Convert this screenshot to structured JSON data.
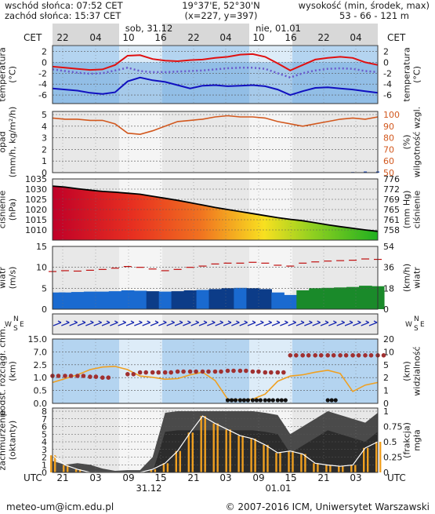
{
  "header": {
    "sunrise": "wschód słońca: 07:52 CET",
    "sunset": "zachód słońca: 15:37 CET",
    "coords": "19°37'E, 52°30'N",
    "grid": "(x=227,  y=397)",
    "altitude_label": "wysokość (min, środek, max)",
    "altitude_values": "53 - 66 - 121 m"
  },
  "timeline": {
    "tz_top": "CET",
    "tz_bottom": "UTC",
    "top_ticks": [
      "22",
      "04",
      "10",
      "16",
      "22",
      "04",
      "10",
      "16",
      "22",
      "04"
    ],
    "bottom_ticks": [
      "21",
      "03",
      "09",
      "15",
      "21",
      "03",
      "09",
      "15",
      "21",
      "03"
    ],
    "day_top_1": "sob, 31.12",
    "day_top_2": "nie, 01.01",
    "day_bottom_1": "31.12",
    "day_bottom_2": "01.01"
  },
  "footer": {
    "email": "meteo-um@icm.edu.pl",
    "copyright": "© 2007-2016 ICM, Uniwersytet Warszawski"
  },
  "colors": {
    "temp_max": "#e01010",
    "temp_min": "#1010c0",
    "temp_mid": "#6a5acd",
    "humidity": "#d2581e",
    "pressure": "#000000",
    "wind_gust": "#c01010",
    "wind_bar": "#1060c0",
    "visibility": "#f0a020",
    "cloud_dots": "#a03030",
    "fog_line": "#ffffff",
    "fog_bars": "#f0a020"
  },
  "chart_data": [
    {
      "type": "line",
      "name": "temperature",
      "ylabel_left": "temperatura\n(°C)",
      "ylabel_right": "temperatura\n(°C)",
      "ylim": [
        -7,
        2.5
      ],
      "yticks": [
        2,
        0,
        -2,
        -4,
        -6
      ],
      "series": [
        {
          "name": "max",
          "values": [
            -0.8,
            -1.0,
            -1.2,
            -1.4,
            -1.3,
            -0.5,
            1.2,
            1.3,
            0.6,
            0.3,
            0.2,
            0.4,
            0.5,
            0.8,
            1.0,
            1.4,
            1.5,
            1.0,
            -0.2,
            -1.5,
            -0.5,
            0.5,
            0.8,
            1.0,
            0.8,
            0.0,
            -0.5
          ]
        },
        {
          "name": "mid",
          "values": [
            -1.3,
            -1.6,
            -1.9,
            -2.1,
            -2.0,
            -1.5,
            -1.0,
            -1.6,
            -1.8,
            -1.8,
            -1.7,
            -1.6,
            -1.5,
            -1.3,
            -1.1,
            -1.0,
            -1.0,
            -1.2,
            -2.0,
            -2.8,
            -2.0,
            -1.5,
            -1.2,
            -1.1,
            -1.2,
            -1.6,
            -1.8
          ]
        },
        {
          "name": "min",
          "values": [
            -4.8,
            -5.0,
            -5.2,
            -5.6,
            -5.8,
            -5.5,
            -3.5,
            -2.8,
            -3.3,
            -3.6,
            -4.2,
            -4.8,
            -4.3,
            -4.2,
            -4.4,
            -4.3,
            -4.2,
            -4.4,
            -5.0,
            -6.0,
            -5.3,
            -4.7,
            -4.6,
            -4.8,
            -5.0,
            -5.3,
            -5.6
          ]
        }
      ]
    },
    {
      "type": "line",
      "name": "precipitation-humidity",
      "ylabel_left": "opad\n(mm/h, kg/m²/h)",
      "ylabel_right": "(%)\nwilgotność wzgl.",
      "ylim_left": [
        0,
        5
      ],
      "yticks_left": [
        0,
        1,
        2,
        3,
        4,
        5
      ],
      "ylim_right": [
        50,
        100
      ],
      "yticks_right": [
        50,
        60,
        70,
        80,
        90,
        100
      ],
      "series": [
        {
          "name": "humidity",
          "values": [
            97,
            96,
            96,
            95,
            95,
            92,
            84,
            83,
            86,
            90,
            94,
            95,
            96,
            98,
            99,
            98,
            98,
            97,
            94,
            92,
            90,
            92,
            94,
            96,
            97,
            96,
            98
          ]
        },
        {
          "name": "precipitation",
          "values": [
            0,
            0,
            0,
            0,
            0,
            0,
            0,
            0,
            0,
            0,
            0,
            0,
            0,
            0,
            0,
            0,
            0,
            0,
            0,
            0,
            0,
            0,
            0,
            0,
            0.05,
            0.1,
            0.1
          ]
        }
      ]
    },
    {
      "type": "area",
      "name": "pressure",
      "ylabel_left": "ciśnienie\n(hPa)",
      "ylabel_right": "(mm Hg)\nciśnienie",
      "ylim_left": [
        1005,
        1035
      ],
      "yticks_left": [
        1035,
        1030,
        1025,
        1020,
        1015,
        1010
      ],
      "yticks_right": [
        "776",
        "772",
        "769",
        "765",
        "761",
        "758"
      ],
      "values": [
        1031.5,
        1031.0,
        1030.2,
        1029.5,
        1028.9,
        1028.5,
        1028.0,
        1027.5,
        1026.5,
        1025.5,
        1024.5,
        1023.4,
        1022.2,
        1021.0,
        1020.0,
        1019.0,
        1018.0,
        1017.0,
        1016.0,
        1015.2,
        1014.5,
        1013.5,
        1012.5,
        1011.6,
        1010.8,
        1010.0,
        1009.3
      ]
    },
    {
      "type": "bar",
      "name": "wind",
      "ylabel_left": "wiatr\n(m/s)",
      "ylabel_right": "(km/h)\nwiatr",
      "ylim_left": [
        0,
        15
      ],
      "yticks_left": [
        0,
        5,
        10,
        15
      ],
      "yticks_right": [
        "0",
        "18",
        "36",
        "54"
      ],
      "series": [
        {
          "name": "speed",
          "values": [
            4.0,
            4.0,
            4.1,
            4.2,
            4.2,
            4.3,
            4.5,
            4.4,
            4.3,
            4.2,
            4.3,
            4.5,
            4.6,
            4.8,
            5.0,
            5.1,
            5.0,
            4.8,
            4.0,
            3.4,
            4.5,
            5.0,
            5.1,
            5.2,
            5.3,
            5.6,
            5.5
          ]
        },
        {
          "name": "gusts",
          "values": [
            9.0,
            9.2,
            9.1,
            9.3,
            9.5,
            9.8,
            10.2,
            10.0,
            9.6,
            9.2,
            9.5,
            10.0,
            10.3,
            10.8,
            11.0,
            11.0,
            11.2,
            11.0,
            10.5,
            10.3,
            11.0,
            11.3,
            11.5,
            11.6,
            11.7,
            12.0,
            11.9
          ]
        }
      ]
    },
    {
      "type": "scatter",
      "name": "wind-direction",
      "ylabel_left": "W N S E",
      "ylabel_right": "W N S E",
      "direction": "W",
      "count": 40
    },
    {
      "type": "scatter",
      "name": "clouds-visibility",
      "ylabel_left": "podst. rozciągł. chm.\n(km)",
      "ylabel_right": "(km)\nwidzialność",
      "yticks_left": [
        "0.0",
        "0.5",
        "1.0",
        "2.5",
        "7.0",
        "15.0"
      ],
      "yticks_right": [
        "0",
        "1",
        "2",
        "5",
        "10",
        "20"
      ],
      "series": [
        {
          "name": "visibility",
          "values": [
            3.0,
            3.6,
            4.2,
            5.0,
            5.4,
            5.5,
            5.0,
            4.0,
            3.8,
            3.5,
            3.6,
            4.2,
            4.6,
            3.3,
            0.4,
            0.3,
            0.4,
            1.2,
            3.2,
            4.0,
            4.2,
            4.6,
            4.9,
            4.4,
            1.6,
            2.6,
            3.0
          ]
        },
        {
          "name": "cloud-base",
          "values": [
            1.2,
            1.2,
            1.2,
            1.1,
            1.0,
            null,
            1.4,
            1.6,
            1.6,
            1.6,
            1.7,
            1.7,
            1.7,
            1.7,
            1.8,
            1.8,
            1.7,
            1.6,
            1.6,
            5.8,
            5.8,
            5.8,
            5.8,
            5.8,
            5.8,
            5.8,
            5.8
          ]
        }
      ]
    },
    {
      "type": "area",
      "name": "cloud-cover-fog",
      "ylabel_left": "zachmurzenie\n(oktanty)",
      "ylabel_right": "(frakcja)\nmgła",
      "ylim_left": [
        0,
        8
      ],
      "yticks_left": [
        0,
        1,
        2,
        3,
        4,
        5,
        6,
        7,
        8
      ],
      "ylim_right": [
        0,
        1
      ],
      "yticks_right": [
        "0",
        "0.25",
        "0.5",
        "0.75",
        "1"
      ],
      "series": [
        {
          "name": "total-cloud",
          "values": [
            1.5,
            1.0,
            1.2,
            1.0,
            0.5,
            0.2,
            0.3,
            0.3,
            2.0,
            7.8,
            8.0,
            8.0,
            8.0,
            8.0,
            8.0,
            8.0,
            8.0,
            7.8,
            7.5,
            5.0,
            6.0,
            7.0,
            8.0,
            7.5,
            7.0,
            6.5,
            7.8
          ]
        },
        {
          "name": "fog",
          "values": [
            0.28,
            0.12,
            0.05,
            0,
            0,
            0,
            0,
            0,
            0.05,
            0.15,
            0.35,
            0.65,
            0.92,
            0.8,
            0.7,
            0.6,
            0.55,
            0.45,
            0.32,
            0.35,
            0.3,
            0.15,
            0.12,
            0.1,
            0.12,
            0.4,
            0.5
          ]
        }
      ]
    }
  ]
}
